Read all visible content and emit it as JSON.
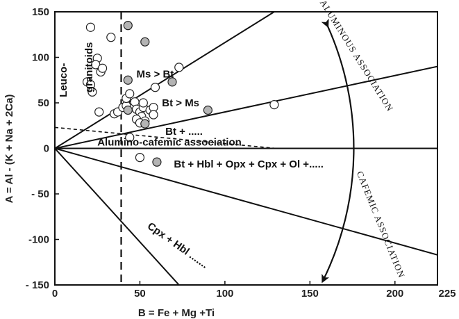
{
  "chart_data": {
    "type": "scatter",
    "title": "",
    "xlabel": "B = Fe + Mg +Ti",
    "ylabel": "A = Al - (K + Na + 2Ca)",
    "xlim": [
      0,
      225
    ],
    "ylim": [
      -150,
      150
    ],
    "x_ticks": [
      "0",
      "50",
      "100",
      "150",
      "200",
      "225"
    ],
    "y_ticks": [
      "150",
      "100",
      "50",
      "0",
      "- 50",
      "-100",
      "- 150"
    ],
    "grid": false,
    "boundary_lines": [
      {
        "from": [
          0,
          0
        ],
        "to": [
          129,
          150
        ]
      },
      {
        "from": [
          0,
          0
        ],
        "to": [
          225,
          90
        ]
      },
      {
        "from": [
          0,
          0
        ],
        "to": [
          225,
          0
        ]
      },
      {
        "from": [
          0,
          0
        ],
        "to": [
          225,
          -117
        ]
      },
      {
        "from": [
          0,
          0
        ],
        "to": [
          73,
          -150
        ]
      }
    ],
    "dashed_lines": [
      {
        "from": [
          39,
          150
        ],
        "to": [
          39,
          -150
        ],
        "style": "long-dash"
      },
      {
        "from": [
          0,
          23
        ],
        "to": [
          130,
          0
        ],
        "style": "short-dash"
      }
    ],
    "series": [
      {
        "marker": "open-circle",
        "points": [
          [
            21,
            133
          ],
          [
            33,
            122
          ],
          [
            25,
            99
          ],
          [
            24,
            92
          ],
          [
            27,
            84
          ],
          [
            28,
            88
          ],
          [
            19,
            73
          ],
          [
            21,
            70
          ],
          [
            22,
            62
          ],
          [
            26,
            40
          ],
          [
            35,
            38
          ],
          [
            37,
            40
          ],
          [
            40,
            45
          ],
          [
            42,
            47
          ],
          [
            42,
            55
          ],
          [
            44,
            60
          ],
          [
            47,
            51
          ],
          [
            48,
            43
          ],
          [
            50,
            40
          ],
          [
            52,
            45
          ],
          [
            51,
            35
          ],
          [
            53,
            30
          ],
          [
            52,
            50
          ],
          [
            56,
            42
          ],
          [
            58,
            45
          ],
          [
            58,
            37
          ],
          [
            48,
            32
          ],
          [
            50,
            28
          ],
          [
            44,
            12
          ],
          [
            59,
            67
          ],
          [
            73,
            89
          ],
          [
            129,
            48
          ],
          [
            50,
            -10
          ]
        ]
      },
      {
        "marker": "filled-circle",
        "color": "#b4b4b4",
        "points": [
          [
            43,
            135
          ],
          [
            53,
            117
          ],
          [
            43,
            75
          ],
          [
            69,
            73
          ],
          [
            43,
            42
          ],
          [
            53,
            27
          ],
          [
            90,
            42
          ],
          [
            60,
            -15
          ]
        ]
      }
    ],
    "annotations": [
      {
        "text": "Leuco-",
        "x": 7,
        "y": 75,
        "rotation": -90
      },
      {
        "text": "granitoids",
        "x": 22,
        "y": 89,
        "rotation": -90
      },
      {
        "text": "Ms > Bt",
        "x": 48,
        "y": 78
      },
      {
        "text": "Bt > Ms",
        "x": 63,
        "y": 46
      },
      {
        "text": "Bt + .....",
        "x": 65,
        "y": 15
      },
      {
        "text": "Alumino-cafemic association",
        "x": 25,
        "y": 3
      },
      {
        "text": "Bt + Hbl + Opx + Cpx + Ol +.....",
        "x": 70,
        "y": -21
      },
      {
        "text": "Cpx + Hbl .......",
        "x": 54,
        "y": -87,
        "rotation": 35
      },
      {
        "text": "ALUMINOUS ASSOCIATION",
        "x": 176,
        "y": 100,
        "rotation": 58
      },
      {
        "text": "CAFEMIC ASSOCIATION",
        "x": 190,
        "y": -85,
        "rotation": 68
      }
    ]
  }
}
